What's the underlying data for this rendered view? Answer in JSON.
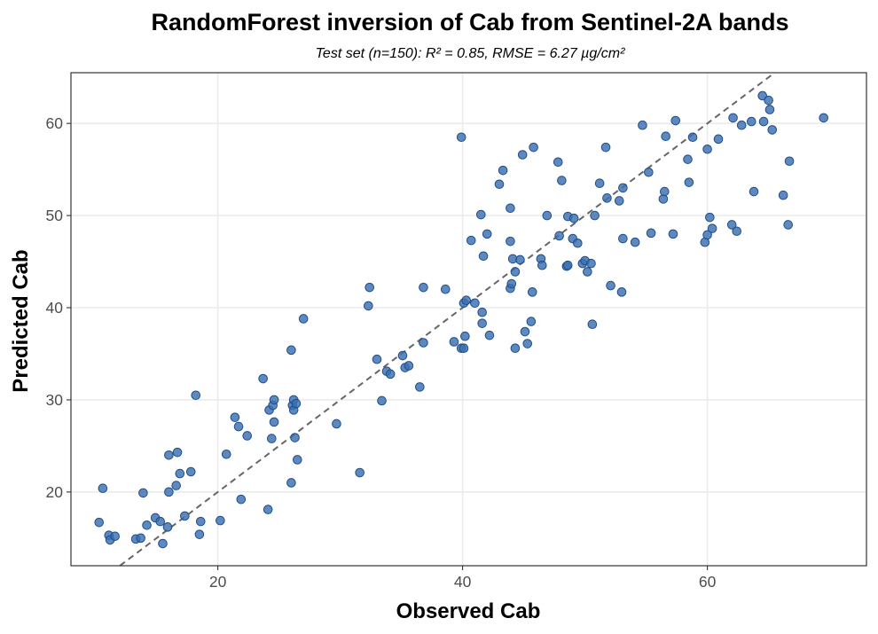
{
  "chart_data": {
    "type": "scatter",
    "title": "RandomForest inversion of Cab from Sentinel-2A bands",
    "subtitle": "Test set (n=150): R² = 0.85, RMSE = 6.27 µg/cm²",
    "xlabel": "Observed Cab",
    "ylabel": "Predicted Cab",
    "xlim": [
      8,
      73
    ],
    "ylim": [
      12,
      65.5
    ],
    "xticks": [
      20,
      40,
      60
    ],
    "yticks": [
      20,
      30,
      40,
      50,
      60
    ],
    "grid": true,
    "legend": "none",
    "point_color": "#3a6fb0",
    "reference_line": "1:1",
    "points": [
      [
        10.3,
        16.7
      ],
      [
        10.6,
        20.4
      ],
      [
        11.1,
        15.3
      ],
      [
        11.2,
        14.8
      ],
      [
        11.6,
        15.2
      ],
      [
        13.3,
        14.9
      ],
      [
        13.7,
        15.0
      ],
      [
        13.9,
        19.9
      ],
      [
        14.2,
        16.4
      ],
      [
        14.9,
        17.2
      ],
      [
        15.3,
        16.8
      ],
      [
        15.5,
        14.4
      ],
      [
        15.9,
        16.2
      ],
      [
        16.0,
        20.0
      ],
      [
        16.0,
        24.0
      ],
      [
        16.6,
        20.7
      ],
      [
        16.7,
        24.3
      ],
      [
        16.9,
        22.0
      ],
      [
        17.3,
        17.4
      ],
      [
        17.8,
        22.2
      ],
      [
        18.2,
        30.5
      ],
      [
        18.5,
        15.4
      ],
      [
        18.6,
        16.8
      ],
      [
        20.2,
        16.9
      ],
      [
        20.7,
        24.1
      ],
      [
        21.4,
        28.1
      ],
      [
        21.7,
        27.1
      ],
      [
        21.9,
        19.2
      ],
      [
        22.4,
        26.1
      ],
      [
        23.7,
        32.3
      ],
      [
        24.1,
        18.1
      ],
      [
        24.2,
        28.9
      ],
      [
        24.4,
        25.8
      ],
      [
        24.5,
        29.4
      ],
      [
        24.6,
        27.6
      ],
      [
        24.6,
        30.0
      ],
      [
        26.0,
        35.4
      ],
      [
        26.0,
        21.0
      ],
      [
        26.1,
        29.4
      ],
      [
        26.2,
        28.9
      ],
      [
        26.2,
        30.0
      ],
      [
        26.3,
        25.9
      ],
      [
        26.4,
        29.6
      ],
      [
        26.5,
        23.5
      ],
      [
        27.0,
        38.8
      ],
      [
        29.7,
        27.4
      ],
      [
        31.6,
        22.1
      ],
      [
        32.3,
        40.2
      ],
      [
        32.4,
        42.2
      ],
      [
        33.0,
        34.4
      ],
      [
        33.4,
        29.9
      ],
      [
        33.8,
        33.1
      ],
      [
        34.1,
        32.8
      ],
      [
        35.1,
        34.8
      ],
      [
        35.3,
        33.5
      ],
      [
        35.6,
        33.7
      ],
      [
        36.5,
        31.4
      ],
      [
        36.8,
        36.2
      ],
      [
        36.8,
        42.2
      ],
      [
        38.6,
        42.0
      ],
      [
        39.3,
        36.3
      ],
      [
        39.9,
        58.5
      ],
      [
        39.9,
        35.6
      ],
      [
        40.1,
        35.6
      ],
      [
        40.1,
        40.5
      ],
      [
        40.2,
        36.9
      ],
      [
        40.3,
        40.8
      ],
      [
        40.7,
        47.3
      ],
      [
        41.0,
        40.5
      ],
      [
        41.5,
        50.1
      ],
      [
        41.6,
        38.3
      ],
      [
        41.6,
        39.5
      ],
      [
        41.7,
        45.6
      ],
      [
        42.0,
        48.0
      ],
      [
        42.2,
        37.0
      ],
      [
        43.0,
        53.4
      ],
      [
        43.3,
        54.9
      ],
      [
        43.9,
        47.2
      ],
      [
        43.9,
        50.8
      ],
      [
        43.9,
        42.1
      ],
      [
        44.0,
        42.6
      ],
      [
        44.1,
        45.3
      ],
      [
        44.3,
        43.9
      ],
      [
        44.3,
        35.6
      ],
      [
        44.7,
        45.2
      ],
      [
        44.9,
        56.6
      ],
      [
        45.1,
        37.4
      ],
      [
        45.3,
        36.1
      ],
      [
        45.6,
        38.5
      ],
      [
        45.7,
        41.7
      ],
      [
        45.8,
        57.4
      ],
      [
        46.4,
        45.3
      ],
      [
        46.5,
        44.6
      ],
      [
        46.9,
        50.0
      ],
      [
        47.8,
        55.8
      ],
      [
        47.9,
        47.8
      ],
      [
        48.1,
        53.8
      ],
      [
        48.5,
        44.5
      ],
      [
        48.6,
        49.9
      ],
      [
        48.6,
        44.6
      ],
      [
        49.0,
        47.5
      ],
      [
        49.1,
        49.7
      ],
      [
        49.4,
        47.0
      ],
      [
        49.8,
        44.8
      ],
      [
        50.0,
        45.1
      ],
      [
        50.2,
        43.9
      ],
      [
        50.5,
        44.8
      ],
      [
        50.6,
        38.2
      ],
      [
        50.8,
        50.0
      ],
      [
        51.2,
        53.5
      ],
      [
        51.7,
        57.4
      ],
      [
        51.8,
        51.9
      ],
      [
        52.1,
        42.4
      ],
      [
        52.8,
        51.6
      ],
      [
        53.1,
        53.0
      ],
      [
        53.1,
        47.5
      ],
      [
        53.0,
        41.7
      ],
      [
        54.1,
        47.1
      ],
      [
        54.7,
        59.8
      ],
      [
        55.2,
        54.7
      ],
      [
        55.4,
        48.1
      ],
      [
        56.4,
        51.8
      ],
      [
        56.5,
        52.6
      ],
      [
        56.6,
        58.6
      ],
      [
        57.2,
        48.0
      ],
      [
        57.4,
        60.3
      ],
      [
        58.4,
        56.1
      ],
      [
        58.5,
        53.6
      ],
      [
        58.8,
        58.5
      ],
      [
        59.8,
        47.1
      ],
      [
        60.0,
        47.9
      ],
      [
        60.0,
        57.2
      ],
      [
        60.2,
        49.8
      ],
      [
        60.4,
        48.6
      ],
      [
        60.9,
        58.3
      ],
      [
        62.0,
        49.0
      ],
      [
        62.1,
        60.6
      ],
      [
        62.4,
        48.3
      ],
      [
        62.8,
        59.8
      ],
      [
        63.6,
        60.2
      ],
      [
        63.8,
        52.6
      ],
      [
        64.5,
        63.0
      ],
      [
        64.6,
        60.2
      ],
      [
        65.0,
        62.5
      ],
      [
        65.1,
        61.5
      ],
      [
        65.3,
        59.3
      ],
      [
        66.2,
        52.2
      ],
      [
        66.6,
        49.0
      ],
      [
        66.7,
        55.9
      ],
      [
        69.5,
        60.6
      ]
    ]
  }
}
